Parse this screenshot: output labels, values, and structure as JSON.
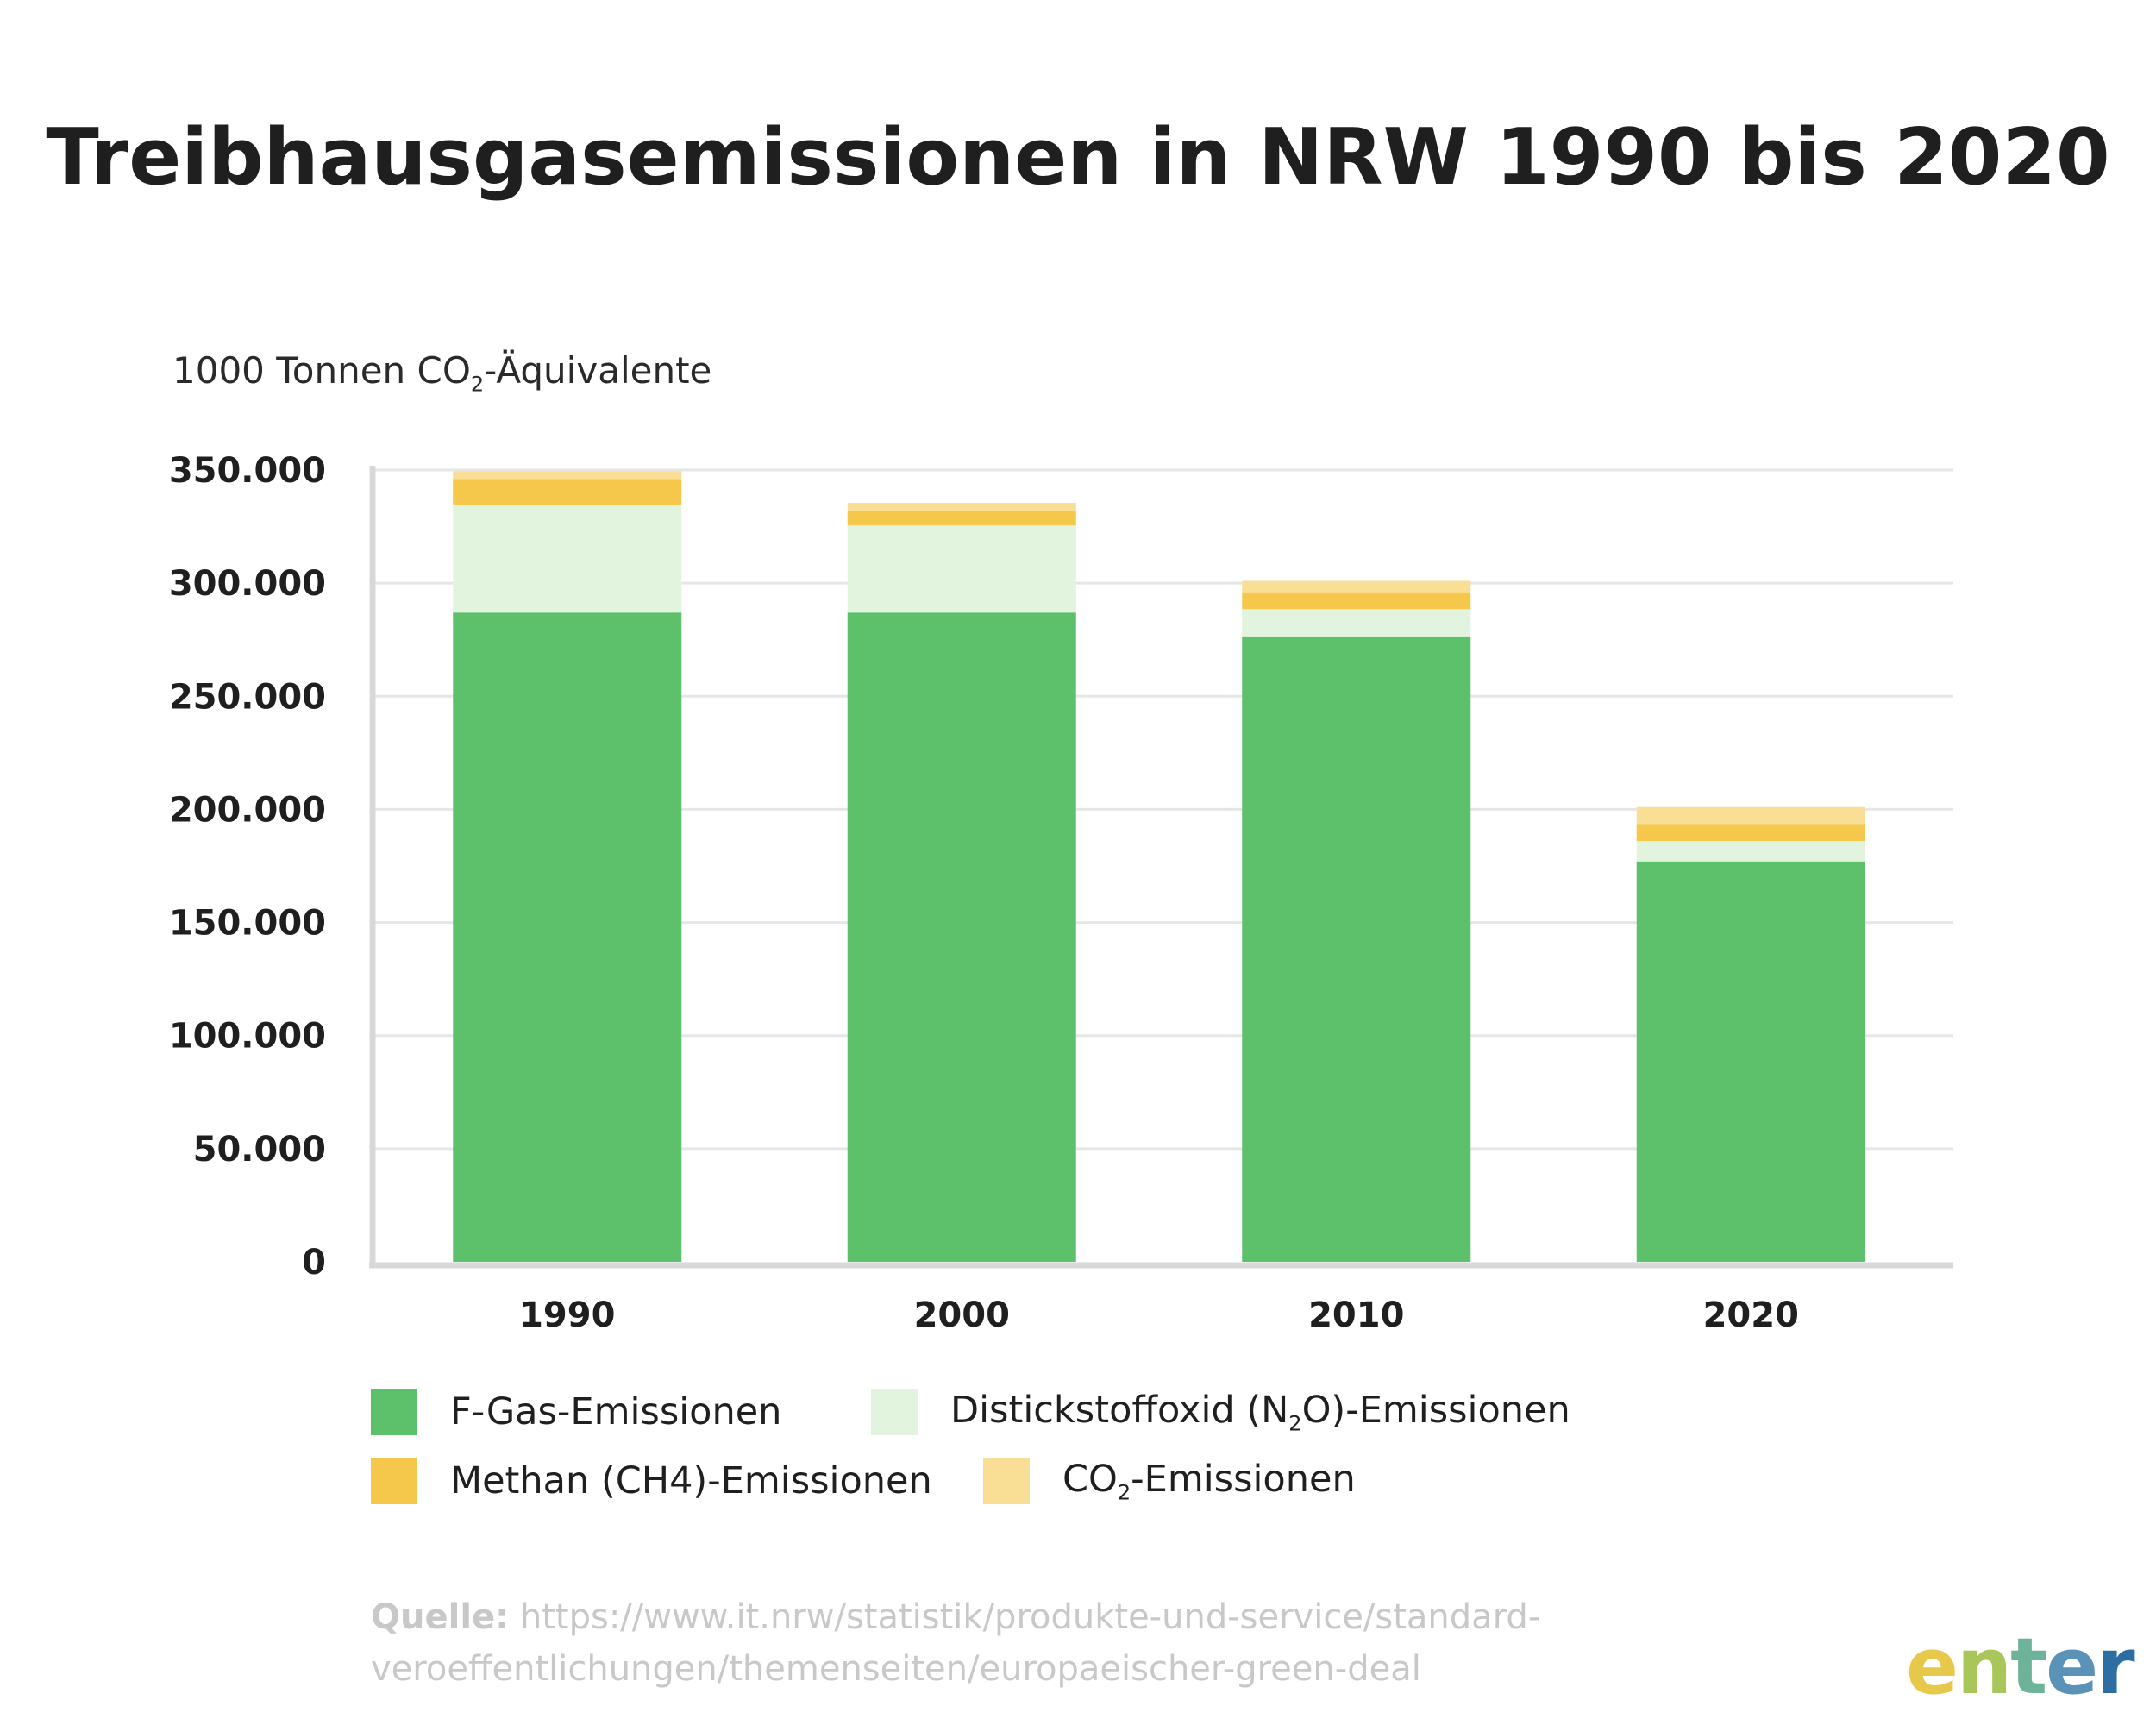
{
  "title": "Treibhausgasemissionen in NRW 1990 bis 2020",
  "unit_label": {
    "prefix": "1000 Tonnen CO",
    "sub": "2",
    "suffix": "-Äquivalente"
  },
  "chart_data": {
    "type": "bar",
    "stacked": true,
    "categories": [
      "1990",
      "2000",
      "2010",
      "2020"
    ],
    "series": [
      {
        "name": "F-Gas-Emissionen",
        "color": "#5dc06b",
        "values": [
          287000,
          287000,
          276500,
          177000
        ]
      },
      {
        "name": "Distickstoffoxid (N₂O)-Emissionen",
        "color": "#e2f4dd",
        "values": [
          47500,
          38500,
          12000,
          9000
        ]
      },
      {
        "name": "Methan (CH4)-Emissionen",
        "color": "#f5c84c",
        "values": [
          11500,
          6500,
          7500,
          7500
        ]
      },
      {
        "name": "CO₂-Emissionen",
        "color": "#f9df95",
        "values": [
          3500,
          3500,
          5000,
          7500
        ]
      }
    ],
    "ylim": [
      0,
      350000
    ],
    "yticks": [
      "0",
      "50.000",
      "100.000",
      "150.000",
      "200.000",
      "250.000",
      "300.000",
      "350.000"
    ],
    "grid": true
  },
  "legend": [
    {
      "prefix": "F-Gas-Emissionen",
      "sub": "",
      "suffix": "",
      "color": "#5dc06b"
    },
    {
      "prefix": "Distickstoffoxid (N",
      "sub": "2",
      "suffix": "O)-Emissionen",
      "color": "#e2f4dd"
    },
    {
      "prefix": "Methan (CH4)-Emissionen",
      "sub": "",
      "suffix": "",
      "color": "#f5c84c"
    },
    {
      "prefix": "CO",
      "sub": "2",
      "suffix": "-Emissionen",
      "color": "#f9df95"
    }
  ],
  "source": {
    "label": "Quelle:",
    "url_line1": "https://www.it.nrw/statistik/produkte-und-service/standard-",
    "url_line2": "veroeffentlichungen/themenseiten/europaeischer-green-deal"
  },
  "logo": {
    "parts": [
      "e",
      "n",
      "t",
      "e",
      "r"
    ],
    "colors": [
      "#e6c84a",
      "#a8c65a",
      "#6db39a",
      "#5b93b8",
      "#2c6ea1"
    ]
  }
}
